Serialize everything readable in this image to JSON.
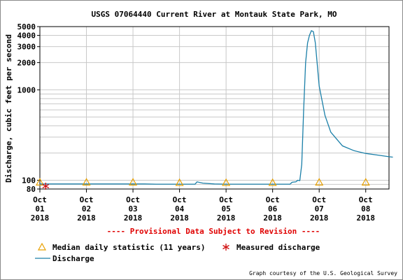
{
  "chart_data": {
    "type": "line",
    "title": "USGS 07064440 Current River at Montauk State Park, MO",
    "ylabel": "Discharge, cubic feet per second",
    "yscale": "log",
    "ylim": [
      80,
      5000
    ],
    "yticks": [
      80,
      100,
      1000,
      2000,
      3000,
      4000,
      5000
    ],
    "xlim": [
      "2018-10-01T00:00",
      "2018-10-08T12:00"
    ],
    "xticks": [
      {
        "x": "2018-10-01",
        "lines": [
          "Oct",
          "01",
          "2018"
        ]
      },
      {
        "x": "2018-10-02",
        "lines": [
          "Oct",
          "02",
          "2018"
        ]
      },
      {
        "x": "2018-10-03",
        "lines": [
          "Oct",
          "03",
          "2018"
        ]
      },
      {
        "x": "2018-10-04",
        "lines": [
          "Oct",
          "04",
          "2018"
        ]
      },
      {
        "x": "2018-10-05",
        "lines": [
          "Oct",
          "05",
          "2018"
        ]
      },
      {
        "x": "2018-10-06",
        "lines": [
          "Oct",
          "06",
          "2018"
        ]
      },
      {
        "x": "2018-10-07",
        "lines": [
          "Oct",
          "07",
          "2018"
        ]
      },
      {
        "x": "2018-10-08",
        "lines": [
          "Oct",
          "08",
          "2018"
        ]
      }
    ],
    "notice": "---- Provisional Data Subject to Revision ----",
    "credit": "Graph courtesy of the U.S. Geological Survey",
    "grid": true,
    "colors": {
      "discharge": "#1a7fa8",
      "median": "#e8a000",
      "measured": "#d01010",
      "notice": "#e00000",
      "grid": "#c8c8c8"
    },
    "series": [
      {
        "name": "Discharge",
        "type": "line",
        "points": [
          [
            "2018-10-01T00:00",
            91
          ],
          [
            "2018-10-01T12:00",
            91
          ],
          [
            "2018-10-02T00:00",
            91
          ],
          [
            "2018-10-02T12:00",
            91
          ],
          [
            "2018-10-03T00:00",
            91
          ],
          [
            "2018-10-03T06:00",
            91
          ],
          [
            "2018-10-03T12:00",
            90.5
          ],
          [
            "2018-10-04T00:00",
            90.5
          ],
          [
            "2018-10-04T08:00",
            90.5
          ],
          [
            "2018-10-04T09:00",
            96
          ],
          [
            "2018-10-04T12:00",
            93
          ],
          [
            "2018-10-04T18:00",
            91
          ],
          [
            "2018-10-05T00:00",
            90.5
          ],
          [
            "2018-10-05T12:00",
            90.5
          ],
          [
            "2018-10-06T00:00",
            90.5
          ],
          [
            "2018-10-06T09:00",
            90.5
          ],
          [
            "2018-10-06T10:00",
            95
          ],
          [
            "2018-10-06T12:00",
            96
          ],
          [
            "2018-10-06T13:00",
            100
          ],
          [
            "2018-10-06T14:00",
            99
          ],
          [
            "2018-10-06T15:00",
            150
          ],
          [
            "2018-10-06T16:00",
            600
          ],
          [
            "2018-10-06T17:00",
            2000
          ],
          [
            "2018-10-06T18:00",
            3300
          ],
          [
            "2018-10-06T19:00",
            4000
          ],
          [
            "2018-10-06T20:00",
            4500
          ],
          [
            "2018-10-06T21:00",
            4400
          ],
          [
            "2018-10-06T22:00",
            3300
          ],
          [
            "2018-10-07T00:00",
            1100
          ],
          [
            "2018-10-07T03:00",
            520
          ],
          [
            "2018-10-07T06:00",
            340
          ],
          [
            "2018-10-07T12:00",
            240
          ],
          [
            "2018-10-07T18:00",
            212
          ],
          [
            "2018-10-08T00:00",
            198
          ],
          [
            "2018-10-08T06:00",
            190
          ],
          [
            "2018-10-08T12:00",
            182
          ],
          [
            "2018-10-08T14:00",
            180
          ]
        ]
      },
      {
        "name": "Median daily statistic (11 years)",
        "type": "marker",
        "marker": "triangle",
        "points": [
          [
            "2018-10-01T00:00",
            95
          ],
          [
            "2018-10-02T00:00",
            95
          ],
          [
            "2018-10-03T00:00",
            95
          ],
          [
            "2018-10-04T00:00",
            94
          ],
          [
            "2018-10-05T00:00",
            94
          ],
          [
            "2018-10-06T00:00",
            94
          ],
          [
            "2018-10-07T00:00",
            95
          ],
          [
            "2018-10-08T00:00",
            95
          ]
        ]
      },
      {
        "name": "Measured discharge",
        "type": "marker",
        "marker": "asterisk",
        "points": [
          [
            "2018-10-01T03:00",
            86
          ]
        ]
      }
    ],
    "legend": [
      {
        "label": "Median daily statistic (11 years)",
        "marker": "triangle"
      },
      {
        "label": "Measured discharge",
        "marker": "asterisk"
      },
      {
        "label": "Discharge",
        "marker": "line"
      }
    ]
  }
}
